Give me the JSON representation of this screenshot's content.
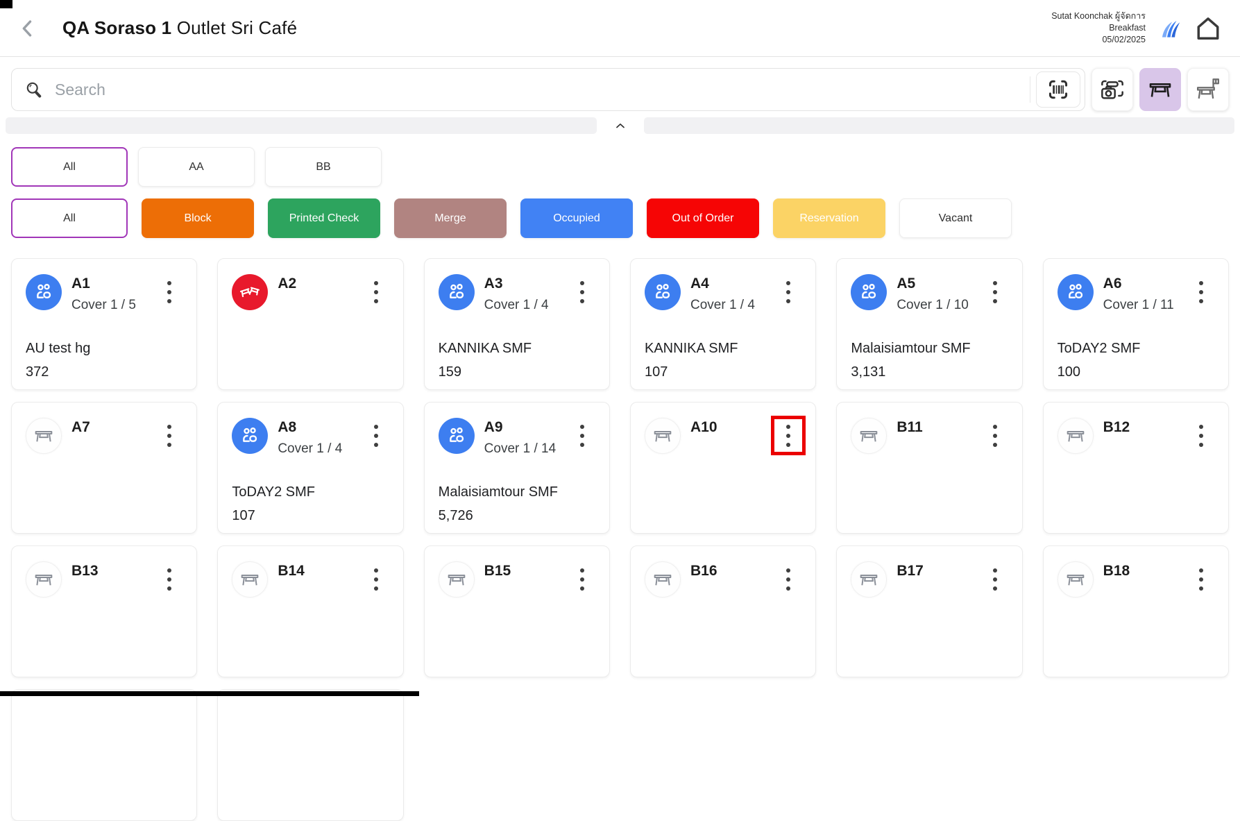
{
  "header": {
    "title_primary": "QA Soraso 1",
    "title_secondary": " Outlet Sri Café",
    "user_name": "Sutat Koonchak ผู้จัดการ",
    "meal_period": "Breakfast",
    "date": "05/02/2025"
  },
  "search": {
    "placeholder": "Search"
  },
  "view_buttons": [
    {
      "name": "camera-scan-button",
      "icon": "camera-scan-icon",
      "selected": false
    },
    {
      "name": "table-view-button",
      "icon": "table-icon",
      "selected": true
    },
    {
      "name": "table-status-view-button",
      "icon": "table-flag-icon",
      "selected": false
    }
  ],
  "zone_filters": [
    {
      "label": "All",
      "selected": true
    },
    {
      "label": "AA",
      "selected": false
    },
    {
      "label": "BB",
      "selected": false
    }
  ],
  "status_filters": [
    {
      "label": "All",
      "bg": "#FFFFFF",
      "fg": "#2F2F2F",
      "selected": true
    },
    {
      "label": "Block",
      "bg": "#ED6E06",
      "fg": "#FFFFFF",
      "selected": false
    },
    {
      "label": "Printed Check",
      "bg": "#2DA45E",
      "fg": "#FFFFFF",
      "selected": false
    },
    {
      "label": "Merge",
      "bg": "#B18481",
      "fg": "#FFFFFF",
      "selected": false
    },
    {
      "label": "Occupied",
      "bg": "#4182F4",
      "fg": "#FFFFFF",
      "selected": false
    },
    {
      "label": "Out of Order",
      "bg": "#F60505",
      "fg": "#FFFFFF",
      "selected": false
    },
    {
      "label": "Reservation",
      "bg": "#FBD365",
      "fg": "#FFFFFF",
      "selected": false
    },
    {
      "label": "Vacant",
      "bg": "#FFFFFF",
      "fg": "#2F2F2F",
      "selected": false
    }
  ],
  "tables": [
    {
      "id": "A1",
      "status": "occupied",
      "cover": "Cover 1 / 5",
      "guest": "AU test hg",
      "amount": "372",
      "highlight": false
    },
    {
      "id": "A2",
      "status": "out-of-order",
      "cover": "",
      "guest": "",
      "amount": "",
      "highlight": false
    },
    {
      "id": "A3",
      "status": "occupied",
      "cover": "Cover 1 / 4",
      "guest": "KANNIKA SMF",
      "amount": "159",
      "highlight": false
    },
    {
      "id": "A4",
      "status": "occupied",
      "cover": "Cover 1 / 4",
      "guest": "KANNIKA SMF",
      "amount": "107",
      "highlight": false
    },
    {
      "id": "A5",
      "status": "occupied",
      "cover": "Cover 1 / 10",
      "guest": "Malaisiamtour SMF",
      "amount": "3,131",
      "highlight": false
    },
    {
      "id": "A6",
      "status": "occupied",
      "cover": "Cover 1 / 11",
      "guest": "ToDAY2 SMF",
      "amount": "100",
      "highlight": false
    },
    {
      "id": "A7",
      "status": "vacant",
      "cover": "",
      "guest": "",
      "amount": "",
      "highlight": false
    },
    {
      "id": "A8",
      "status": "occupied",
      "cover": "Cover 1 / 4",
      "guest": "ToDAY2 SMF",
      "amount": "107",
      "highlight": false
    },
    {
      "id": "A9",
      "status": "occupied",
      "cover": "Cover 1 / 14",
      "guest": "Malaisiamtour SMF",
      "amount": "5,726",
      "highlight": false
    },
    {
      "id": "A10",
      "status": "vacant",
      "cover": "",
      "guest": "",
      "amount": "",
      "highlight": true
    },
    {
      "id": "B11",
      "status": "vacant",
      "cover": "",
      "guest": "",
      "amount": "",
      "highlight": false
    },
    {
      "id": "B12",
      "status": "vacant",
      "cover": "",
      "guest": "",
      "amount": "",
      "highlight": false
    },
    {
      "id": "B13",
      "status": "vacant",
      "cover": "",
      "guest": "",
      "amount": "",
      "highlight": false
    },
    {
      "id": "B14",
      "status": "vacant",
      "cover": "",
      "guest": "",
      "amount": "",
      "highlight": false
    },
    {
      "id": "B15",
      "status": "vacant",
      "cover": "",
      "guest": "",
      "amount": "",
      "highlight": false
    },
    {
      "id": "B16",
      "status": "vacant",
      "cover": "",
      "guest": "",
      "amount": "",
      "highlight": false
    },
    {
      "id": "B17",
      "status": "vacant",
      "cover": "",
      "guest": "",
      "amount": "",
      "highlight": false
    },
    {
      "id": "B18",
      "status": "vacant",
      "cover": "",
      "guest": "",
      "amount": "",
      "highlight": false
    }
  ],
  "partial_cards": 2,
  "colors": {
    "accent_purple": "#A136B8",
    "occupied_blue": "#3D7EF0",
    "out_of_order_red": "#E8192C",
    "selected_view_bg": "#D9C6E9",
    "highlight_red": "#EB0000"
  }
}
